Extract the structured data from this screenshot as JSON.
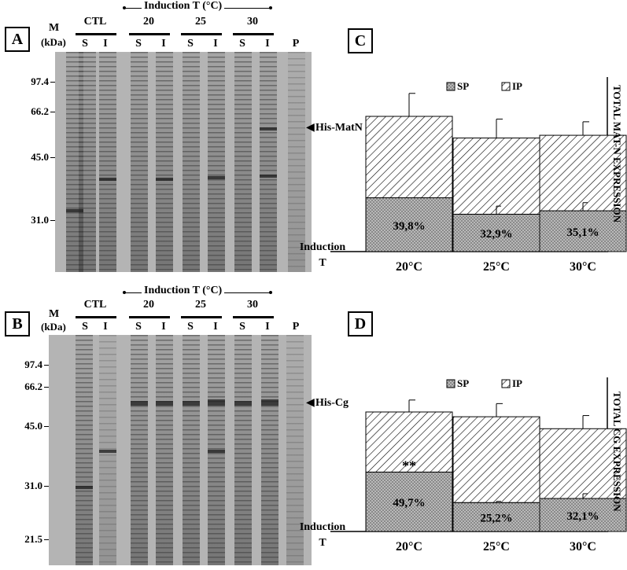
{
  "gel_panels": [
    {
      "id": "A",
      "marker_header": "M",
      "marker_unit": "(kDa)",
      "induction_label": "Induction T (°C)",
      "groups": [
        "CTL",
        "20",
        "25",
        "30"
      ],
      "lane_labels": [
        "S",
        "I",
        "S",
        "I",
        "S",
        "I",
        "S",
        "I",
        "P"
      ],
      "markers": [
        "97.4",
        "66.2",
        "45.0",
        "31.0"
      ],
      "arrow_label": "His-MatN"
    },
    {
      "id": "B",
      "marker_header": "M",
      "marker_unit": "(kDa)",
      "induction_label": "Induction T (°C)",
      "groups": [
        "CTL",
        "20",
        "25",
        "30"
      ],
      "lane_labels": [
        "S",
        "I",
        "S",
        "I",
        "S",
        "I",
        "S",
        "I",
        "P"
      ],
      "markers": [
        "97.4",
        "66.2",
        "45.0",
        "31.0",
        "21.5"
      ],
      "arrow_label": "His-Cg"
    }
  ],
  "chart_data": [
    {
      "panel": "C",
      "type": "bar",
      "stacked": true,
      "categories": [
        "20°C",
        "25°C",
        "30°C"
      ],
      "series": [
        {
          "name": "SP",
          "values": [
            39.8,
            32.9,
            35.1
          ],
          "error": [
            0,
            0.06,
            0.06
          ]
        },
        {
          "name": "IP",
          "values": [
            60.2,
            67.1,
            64.9
          ],
          "error": [
            0.17,
            0.14,
            0.1
          ]
        }
      ],
      "totals_relative": [
        1.0,
        0.84,
        0.86
      ],
      "sp_fraction_of_total": [
        0.398,
        0.329,
        0.351
      ],
      "bar_labels": [
        "39,8%",
        "32,9%",
        "35,1%"
      ],
      "legend": [
        "SP",
        "IP"
      ],
      "legend_position": "top",
      "xlabel": "Induction T",
      "side_label": "TOTAL MAT-N EXPRESSION",
      "annotations": [],
      "grid": false
    },
    {
      "panel": "D",
      "type": "bar",
      "stacked": true,
      "categories": [
        "20°C",
        "25°C",
        "30°C"
      ],
      "series": [
        {
          "name": "SP",
          "values": [
            49.7,
            25.2,
            32.1
          ],
          "error": [
            0,
            0.01,
            0.04
          ]
        },
        {
          "name": "IP",
          "values": [
            50.3,
            74.8,
            67.9
          ],
          "error": [
            0.1,
            0.11,
            0.11
          ]
        }
      ],
      "totals_relative": [
        1.0,
        0.96,
        0.86
      ],
      "sp_fraction_of_total": [
        0.497,
        0.252,
        0.321
      ],
      "bar_labels": [
        "49,7%",
        "25,2%",
        "32,1%"
      ],
      "legend": [
        "SP",
        "IP"
      ],
      "legend_position": "top",
      "xlabel": "Induction T",
      "side_label": "TOTAL CG EXPRESSION",
      "annotations": [
        "**"
      ],
      "grid": false
    }
  ]
}
